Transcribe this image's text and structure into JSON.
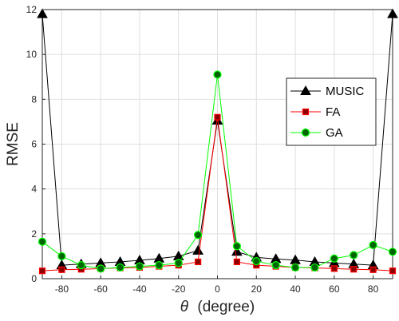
{
  "chart_data": {
    "type": "line",
    "xlabel_symbol": "θ",
    "xlabel_text": "(degree)",
    "ylabel": "RMSE",
    "xlim": [
      -90,
      90
    ],
    "ylim": [
      0,
      12
    ],
    "xticks": [
      -80,
      -60,
      -40,
      -20,
      0,
      20,
      40,
      60,
      80
    ],
    "yticks": [
      0,
      2,
      4,
      6,
      8,
      10,
      12
    ],
    "grid": true,
    "legend_position": "right",
    "x": [
      -90,
      -80,
      -70,
      -60,
      -50,
      -40,
      -30,
      -20,
      -10,
      0,
      10,
      20,
      30,
      40,
      50,
      60,
      70,
      80,
      90
    ],
    "series": [
      {
        "name": "MUSIC",
        "line_color": "#000000",
        "marker": "triangle",
        "marker_fill": "#000000",
        "values": [
          11.8,
          0.6,
          0.65,
          0.7,
          0.75,
          0.82,
          0.9,
          1.0,
          1.25,
          7.05,
          1.2,
          0.95,
          0.88,
          0.83,
          0.75,
          0.7,
          0.65,
          0.6,
          11.8
        ]
      },
      {
        "name": "FA",
        "line_color": "#ff0000",
        "marker": "square",
        "marker_fill": "#8b0000",
        "values": [
          0.35,
          0.4,
          0.42,
          0.45,
          0.48,
          0.5,
          0.55,
          0.6,
          0.75,
          7.2,
          0.75,
          0.6,
          0.55,
          0.5,
          0.48,
          0.45,
          0.42,
          0.4,
          0.35
        ]
      },
      {
        "name": "GA",
        "line_color": "#00ff00",
        "marker": "circle",
        "marker_fill": "#006400",
        "values": [
          1.65,
          1.0,
          0.6,
          0.45,
          0.5,
          0.55,
          0.6,
          0.7,
          1.95,
          9.1,
          1.45,
          0.78,
          0.6,
          0.5,
          0.5,
          0.9,
          1.05,
          1.5,
          1.2
        ]
      }
    ]
  }
}
